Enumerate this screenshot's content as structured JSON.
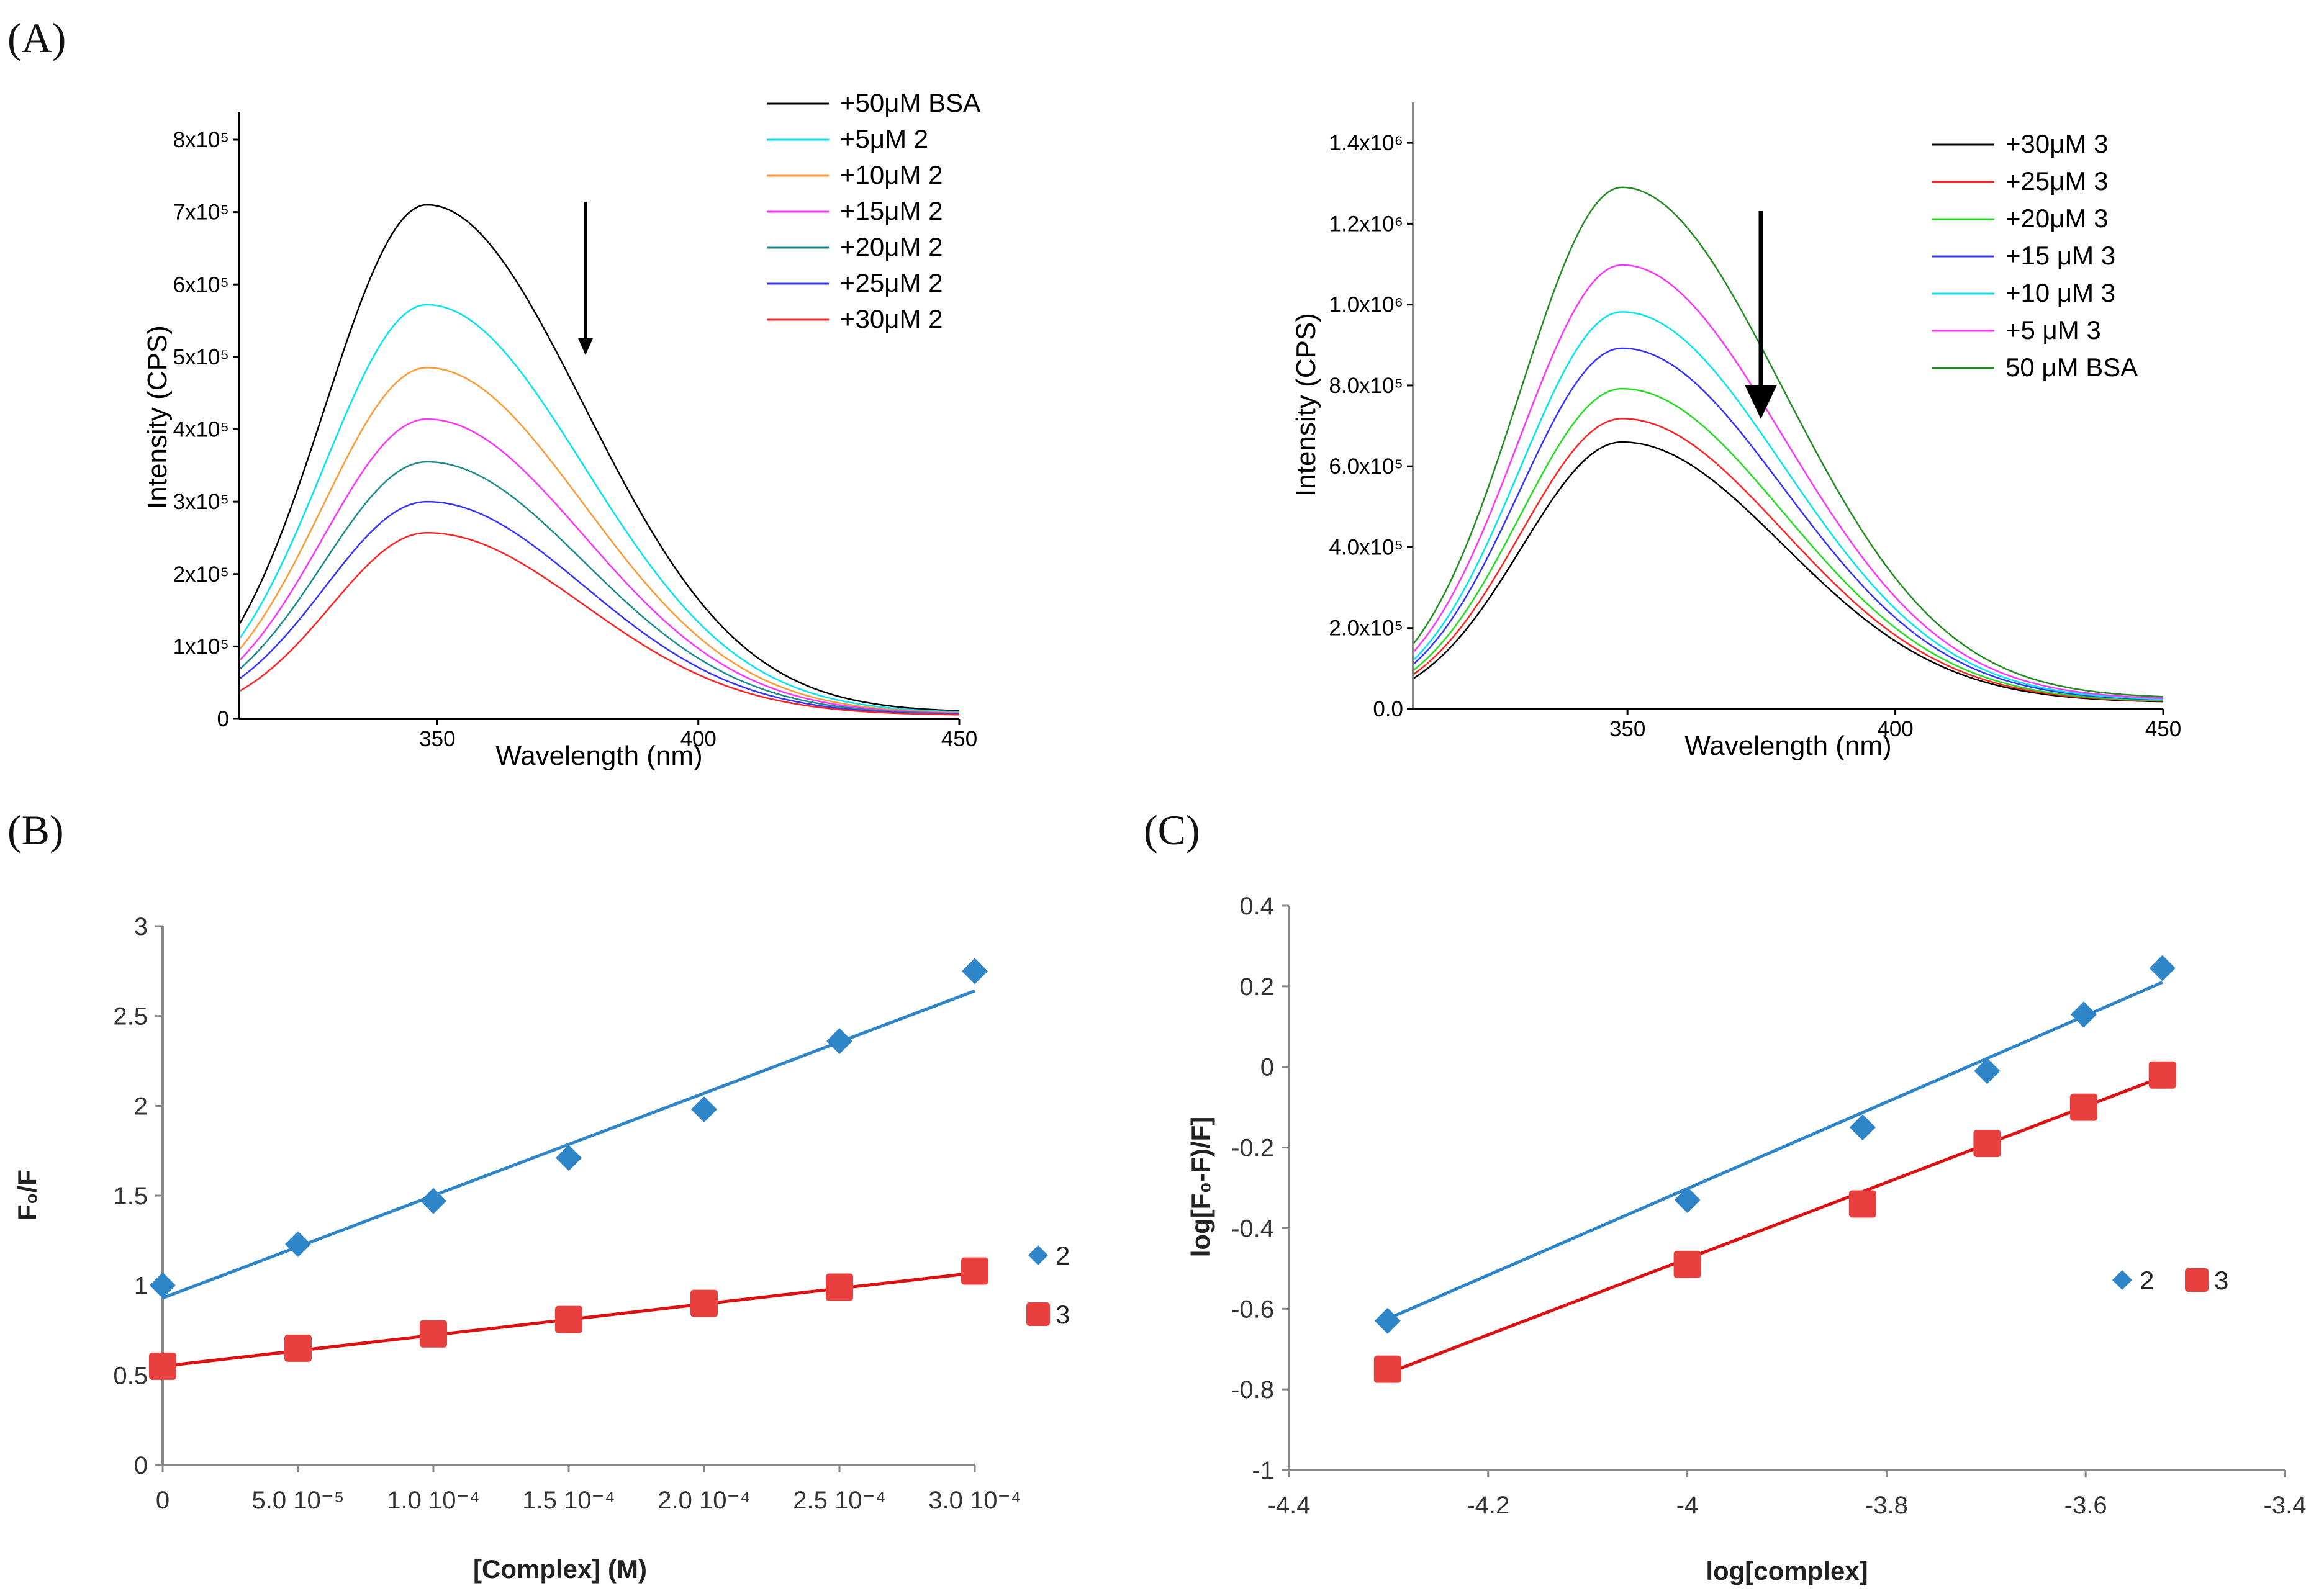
{
  "figure_labels": {
    "a": "(A)",
    "b": "(B)",
    "c": "(C)"
  },
  "chart_data": [
    {
      "id": "a1",
      "type": "line",
      "xlabel": "Wavelength (nm)",
      "ylabel": "Intensity (CPS)",
      "xlim": [
        312,
        450
      ],
      "ylim": [
        0,
        800000
      ],
      "xticks": [
        "350",
        "400",
        "450"
      ],
      "yticks": [
        "0",
        "1x10⁵",
        "2x10⁵",
        "3x10⁵",
        "4x10⁵",
        "5x10⁵",
        "6x10⁵",
        "7x10⁵",
        "8x10⁵"
      ],
      "peak_nm": 348,
      "series": [
        {
          "name": "+50μM BSA",
          "color": "#000000",
          "peak": 710000,
          "start": 130000,
          "end": 9000
        },
        {
          "name": "+5μM 2",
          "color": "#00e5ee",
          "peak": 572000,
          "start": 110000,
          "end": 8000
        },
        {
          "name": "+10μM 2",
          "color": "#ff9933",
          "peak": 485000,
          "start": 95000,
          "end": 7000
        },
        {
          "name": "+15μM 2",
          "color": "#ff33ff",
          "peak": 414000,
          "start": 80000,
          "end": 6500
        },
        {
          "name": "+20μM 2",
          "color": "#1a8a8a",
          "peak": 355000,
          "start": 68000,
          "end": 6000
        },
        {
          "name": "+25μM 2",
          "color": "#3333ff",
          "peak": 300000,
          "start": 55000,
          "end": 5500
        },
        {
          "name": "+30μM 2",
          "color": "#ff2222",
          "peak": 257000,
          "start": 38000,
          "end": 5000
        }
      ],
      "annotation": "downward arrow indicating quenching"
    },
    {
      "id": "a2",
      "type": "line",
      "xlabel": "Wavelength (nm)",
      "ylabel": "Intensity (CPS)",
      "xlim": [
        310,
        450
      ],
      "ylim": [
        0,
        1500000
      ],
      "xticks": [
        "350",
        "400",
        "450"
      ],
      "yticks": [
        "0.0",
        "2.0x10⁵",
        "4.0x10⁵",
        "6.0x10⁵",
        "8.0x10⁵",
        "1.0x10⁶",
        "1.2x10⁶",
        "1.4x10⁶"
      ],
      "peak_nm": 349,
      "series": [
        {
          "name": "+30μM 3",
          "color": "#000000",
          "peak": 660000,
          "start": 75000,
          "end": 16000
        },
        {
          "name": "+25μM 3",
          "color": "#ff2222",
          "peak": 718000,
          "start": 85000,
          "end": 17000
        },
        {
          "name": "+20μM 3",
          "color": "#22dd22",
          "peak": 792000,
          "start": 95000,
          "end": 18000
        },
        {
          "name": "+15 μM 3",
          "color": "#3333ff",
          "peak": 892000,
          "start": 110000,
          "end": 20000
        },
        {
          "name": "+10 μM 3",
          "color": "#00e5ee",
          "peak": 982000,
          "start": 120000,
          "end": 21000
        },
        {
          "name": "+5 μM 3",
          "color": "#ff33ff",
          "peak": 1098000,
          "start": 140000,
          "end": 23000
        },
        {
          "name": "50 μM BSA",
          "color": "#228b22",
          "peak": 1290000,
          "start": 160000,
          "end": 26000
        }
      ],
      "annotation": "bold downward arrow indicating quenching"
    },
    {
      "id": "b",
      "type": "scatter",
      "xlabel": "[Complex] (M)",
      "ylabel": "F₀/F",
      "xlim": [
        0,
        0.0003
      ],
      "ylim": [
        0,
        3
      ],
      "xticks": [
        "0",
        "5.0 10⁻⁵",
        "1.0 10⁻⁴",
        "1.5 10⁻⁴",
        "2.0 10⁻⁴",
        "2.5 10⁻⁴",
        "3.0 10⁻⁴"
      ],
      "yticks": [
        "0",
        "0.5",
        "1",
        "1.5",
        "2",
        "2.5",
        "3"
      ],
      "x": [
        0,
        5e-05,
        0.0001,
        0.00015,
        0.0002,
        0.00025,
        0.0003
      ],
      "series": [
        {
          "name": "2",
          "color": "#2e86c8",
          "marker": "diamond",
          "values": [
            1.0,
            1.23,
            1.47,
            1.71,
            1.98,
            2.36,
            2.75
          ],
          "fit": [
            0.93,
            2.64
          ]
        },
        {
          "name": "3",
          "color": "#e8403e",
          "marker": "square",
          "values": [
            0.55,
            0.65,
            0.73,
            0.81,
            0.9,
            0.99,
            1.08
          ],
          "fit": [
            0.55,
            1.07
          ]
        }
      ]
    },
    {
      "id": "c",
      "type": "scatter",
      "xlabel": "log[complex]",
      "ylabel": "log[F₀-F)/F]",
      "xlim": [
        -4.4,
        -3.4
      ],
      "ylim": [
        -1,
        0.4
      ],
      "xticks": [
        "-4.4",
        "-4.2",
        "-4",
        "-3.8",
        "-3.6",
        "-3.4"
      ],
      "yticks": [
        "-1",
        "-0.8",
        "-0.6",
        "-0.4",
        "-0.2",
        "0",
        "0.2",
        "0.4"
      ],
      "x": [
        -4.301,
        -4.0,
        -3.824,
        -3.699,
        -3.602,
        -3.523
      ],
      "series": [
        {
          "name": "2",
          "color": "#2e86c8",
          "marker": "diamond",
          "values": [
            -0.63,
            -0.33,
            -0.15,
            -0.01,
            0.13,
            0.245
          ],
          "fit": [
            -0.625,
            0.21
          ]
        },
        {
          "name": "3",
          "color": "#e8403e",
          "marker": "square",
          "values": [
            -0.75,
            -0.49,
            -0.34,
            -0.19,
            -0.1,
            -0.02
          ],
          "fit": [
            -0.76,
            -0.025
          ]
        }
      ]
    }
  ]
}
